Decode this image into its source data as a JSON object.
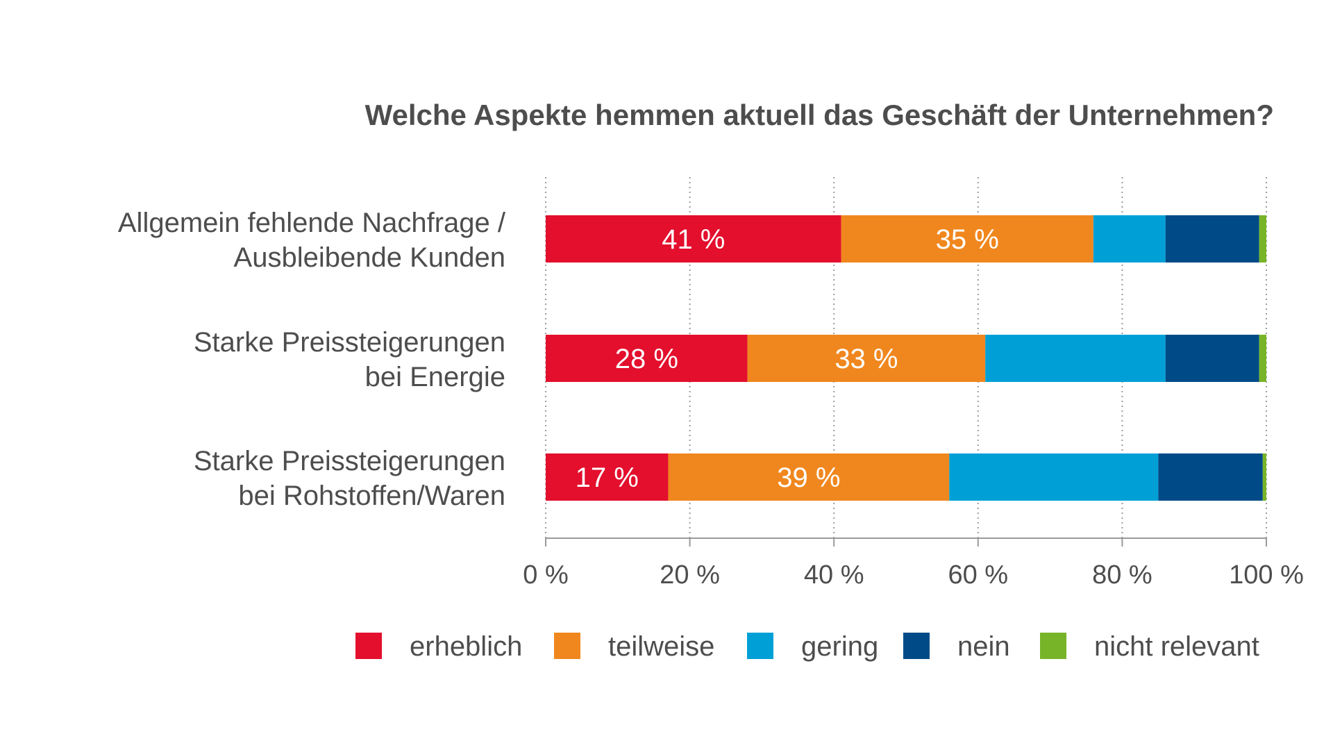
{
  "chart_data": {
    "type": "bar",
    "orientation": "horizontal",
    "stacked": true,
    "title": "Welche Aspekte hemmen aktuell das Geschäft der Unternehmen?",
    "categories": [
      [
        "Allgemein fehlende Nachfrage /",
        "Ausbleibende Kunden"
      ],
      [
        "Starke Preissteigerungen",
        "bei Energie"
      ],
      [
        "Starke Preissteigerungen",
        "bei Rohstoffen/Waren"
      ]
    ],
    "series": [
      {
        "name": "erheblich",
        "color": "#e30f2d",
        "values": [
          41,
          28,
          17
        ],
        "labels": [
          "41 %",
          "28 %",
          "17 %"
        ]
      },
      {
        "name": "teilweise",
        "color": "#f0871e",
        "values": [
          35,
          33,
          39
        ],
        "labels": [
          "35 %",
          "33 %",
          "39 %"
        ]
      },
      {
        "name": "gering",
        "color": "#00a0d7",
        "values": [
          10,
          25,
          29
        ],
        "labels": [
          "",
          "",
          ""
        ]
      },
      {
        "name": "nein",
        "color": "#004b87",
        "values": [
          13,
          13,
          14.5
        ],
        "labels": [
          "",
          "",
          ""
        ]
      },
      {
        "name": "nicht relevant",
        "color": "#78b428",
        "values": [
          1,
          1,
          0.5
        ],
        "labels": [
          "",
          "",
          ""
        ]
      }
    ],
    "x_ticks": [
      "0 %",
      "20 %",
      "40 %",
      "60 %",
      "80 %",
      "100 %"
    ],
    "xlim": [
      0,
      100
    ],
    "grid": true,
    "legend": "bottom"
  }
}
